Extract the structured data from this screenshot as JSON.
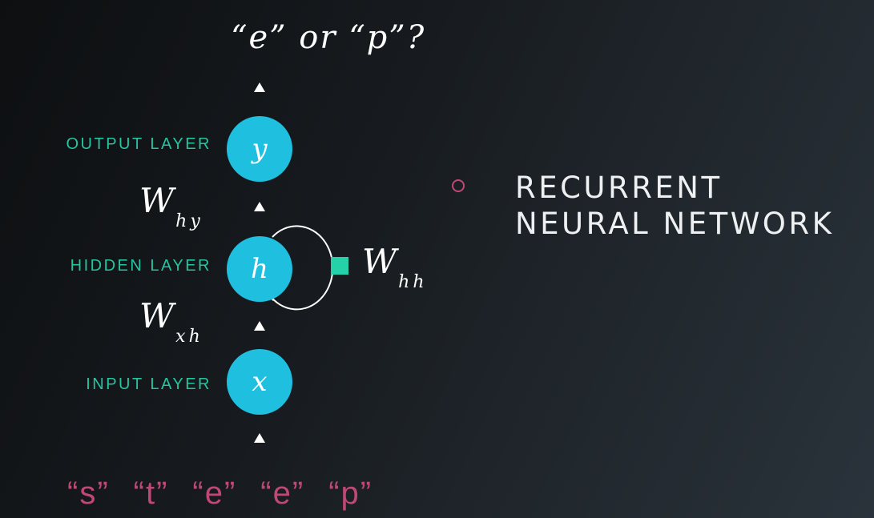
{
  "question": "“e” or “p”?",
  "layers": {
    "output": {
      "label": "OUTPUT LAYER",
      "node": "y"
    },
    "hidden": {
      "label": "HIDDEN LAYER",
      "node": "h"
    },
    "input": {
      "label": "INPUT LAYER",
      "node": "x"
    }
  },
  "weights": {
    "hy": {
      "w": "W",
      "sub": "hy"
    },
    "xh": {
      "w": "W",
      "sub": "xh"
    },
    "hh": {
      "w": "W",
      "sub": "hh"
    }
  },
  "input_sequence": [
    "“s”",
    "“t”",
    "“e”",
    "“e”",
    "“p”"
  ],
  "title": {
    "line1": "RECURRENT",
    "line2": "NEURAL NETWORK"
  },
  "colors": {
    "node": "#1fbfe0",
    "layer_label": "#27c4a0",
    "sequence": "#c04876",
    "recurrent_marker": "#25d1a8",
    "bullet": "#c04876"
  }
}
